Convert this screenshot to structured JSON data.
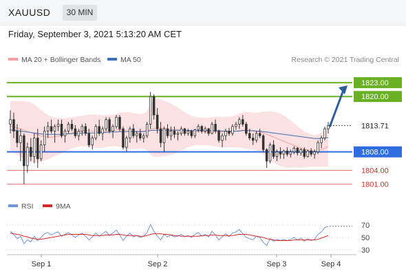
{
  "header": {
    "symbol": "XAUUSD",
    "timeframe": "30 MIN"
  },
  "subtitle": "Friday, September 3, 2021 5:13:20 AM CET",
  "legend": {
    "ma20": {
      "label": "MA 20 + Bollinger Bands",
      "color": "#f4a0a0"
    },
    "ma50": {
      "label": "MA 50",
      "color": "#3b6fb6"
    }
  },
  "credit": "Research © 2021 Trading Central",
  "rsi_legend": {
    "rsi": {
      "label": "RSI",
      "color": "#6f95d8"
    },
    "ma9": {
      "label": "9MA",
      "color": "#d62728"
    }
  },
  "colors": {
    "resistance": "#6ab023",
    "support": "#2f6ce0",
    "minor": "#e07070",
    "current": "#555555",
    "arrow": "#2d5d9e",
    "candle": "#333333",
    "band": "#fadcdc"
  },
  "chart_data": [
    {
      "type": "candlestick",
      "x_axis": {
        "tick_labels": [
          "Sep 1",
          "Sep 2",
          "Sep 3",
          "Sep 4"
        ]
      },
      "y_range": [
        1799,
        1826
      ],
      "current_price": {
        "value": 1813.71,
        "label": "1813.71"
      },
      "levels": [
        {
          "value": 1823.0,
          "label": "1823.00",
          "kind": "resistance"
        },
        {
          "value": 1820.0,
          "label": "1820.00",
          "kind": "resistance"
        },
        {
          "value": 1808.0,
          "label": "1808.00",
          "kind": "support"
        },
        {
          "value": 1804.0,
          "label": "1804.00",
          "kind": "minor"
        },
        {
          "value": 1801.0,
          "label": "1801.00",
          "kind": "minor"
        }
      ],
      "forecast_arrow": {
        "from": 1813.4,
        "to": 1823.0
      },
      "ohlc": [
        [
          1814.0,
          1817.0,
          1812.0,
          1815.0
        ],
        [
          1815.0,
          1816.5,
          1811.0,
          1812.5
        ],
        [
          1812.5,
          1814.0,
          1809.0,
          1810.0
        ],
        [
          1810.0,
          1813.0,
          1806.0,
          1811.5
        ],
        [
          1811.5,
          1812.0,
          1801.0,
          1805.0
        ],
        [
          1805.0,
          1810.0,
          1803.5,
          1809.0
        ],
        [
          1809.0,
          1811.0,
          1806.0,
          1807.0
        ],
        [
          1807.0,
          1812.0,
          1805.5,
          1811.0
        ],
        [
          1811.0,
          1813.0,
          1804.5,
          1806.5
        ],
        [
          1806.5,
          1810.5,
          1806.0,
          1809.5
        ],
        [
          1809.5,
          1813.5,
          1808.0,
          1812.5
        ],
        [
          1812.5,
          1814.5,
          1811.0,
          1813.5
        ],
        [
          1813.5,
          1815.0,
          1812.0,
          1812.5
        ],
        [
          1812.5,
          1814.0,
          1810.0,
          1813.5
        ],
        [
          1813.5,
          1815.0,
          1812.5,
          1814.0
        ],
        [
          1814.0,
          1815.0,
          1811.0,
          1811.5
        ],
        [
          1811.5,
          1813.0,
          1810.0,
          1812.5
        ],
        [
          1812.5,
          1814.5,
          1812.0,
          1814.0
        ],
        [
          1814.0,
          1815.0,
          1812.5,
          1813.0
        ],
        [
          1813.0,
          1813.8,
          1811.0,
          1811.5
        ],
        [
          1811.5,
          1813.0,
          1810.5,
          1812.5
        ],
        [
          1812.5,
          1814.0,
          1811.5,
          1813.5
        ],
        [
          1813.5,
          1814.2,
          1811.5,
          1812.0
        ],
        [
          1812.0,
          1813.0,
          1809.0,
          1809.5
        ],
        [
          1809.5,
          1811.5,
          1808.5,
          1811.0
        ],
        [
          1811.0,
          1814.0,
          1810.5,
          1813.5
        ],
        [
          1813.5,
          1815.0,
          1811.5,
          1812.0
        ],
        [
          1812.0,
          1813.5,
          1810.5,
          1813.0
        ],
        [
          1813.0,
          1815.5,
          1812.5,
          1815.0
        ],
        [
          1815.0,
          1815.5,
          1812.0,
          1812.5
        ],
        [
          1812.5,
          1814.0,
          1811.0,
          1813.5
        ],
        [
          1813.5,
          1816.0,
          1813.0,
          1815.5
        ],
        [
          1815.5,
          1816.0,
          1812.5,
          1813.0
        ],
        [
          1813.0,
          1813.5,
          1808.5,
          1809.0
        ],
        [
          1809.0,
          1811.5,
          1808.0,
          1811.0
        ],
        [
          1811.0,
          1813.5,
          1810.0,
          1813.0
        ],
        [
          1813.0,
          1814.0,
          1811.0,
          1811.5
        ],
        [
          1811.5,
          1812.5,
          1810.0,
          1812.0
        ],
        [
          1812.0,
          1813.0,
          1810.5,
          1811.0
        ],
        [
          1811.0,
          1812.0,
          1810.0,
          1811.5
        ],
        [
          1811.5,
          1814.5,
          1811.0,
          1814.0
        ],
        [
          1814.0,
          1821.0,
          1813.0,
          1820.0
        ],
        [
          1820.0,
          1820.5,
          1815.0,
          1816.0
        ],
        [
          1816.0,
          1817.5,
          1812.0,
          1813.0
        ],
        [
          1813.0,
          1814.5,
          1809.0,
          1810.0
        ],
        [
          1810.0,
          1813.5,
          1808.0,
          1813.0
        ],
        [
          1813.0,
          1814.0,
          1811.0,
          1811.5
        ],
        [
          1811.5,
          1813.5,
          1810.5,
          1812.5
        ],
        [
          1812.5,
          1813.5,
          1811.0,
          1811.8
        ],
        [
          1811.8,
          1812.5,
          1810.5,
          1812.0
        ],
        [
          1812.0,
          1813.5,
          1811.5,
          1813.0
        ],
        [
          1813.0,
          1813.2,
          1811.5,
          1812.0
        ],
        [
          1812.0,
          1813.0,
          1811.5,
          1812.5
        ],
        [
          1812.5,
          1812.8,
          1811.0,
          1811.5
        ],
        [
          1811.5,
          1813.0,
          1811.0,
          1812.8
        ],
        [
          1812.8,
          1814.0,
          1812.2,
          1813.5
        ],
        [
          1813.5,
          1813.8,
          1812.0,
          1812.5
        ],
        [
          1812.5,
          1813.5,
          1812.0,
          1813.0
        ],
        [
          1813.0,
          1813.2,
          1811.5,
          1812.0
        ],
        [
          1812.0,
          1814.5,
          1811.8,
          1814.0
        ],
        [
          1814.0,
          1815.0,
          1812.0,
          1812.5
        ],
        [
          1812.5,
          1812.8,
          1810.0,
          1810.5
        ],
        [
          1810.5,
          1812.0,
          1809.0,
          1811.5
        ],
        [
          1811.5,
          1813.0,
          1810.5,
          1812.5
        ],
        [
          1812.5,
          1813.2,
          1811.5,
          1812.0
        ],
        [
          1812.0,
          1814.0,
          1811.5,
          1813.5
        ],
        [
          1813.5,
          1814.5,
          1812.8,
          1814.0
        ],
        [
          1814.0,
          1815.5,
          1813.0,
          1815.0
        ],
        [
          1815.0,
          1816.0,
          1813.5,
          1814.0
        ],
        [
          1814.0,
          1814.5,
          1811.5,
          1812.0
        ],
        [
          1812.0,
          1813.0,
          1810.5,
          1811.0
        ],
        [
          1811.0,
          1812.0,
          1809.5,
          1810.5
        ],
        [
          1810.5,
          1812.5,
          1810.0,
          1812.0
        ],
        [
          1812.0,
          1813.0,
          1811.0,
          1811.5
        ],
        [
          1811.5,
          1811.8,
          1808.0,
          1808.5
        ],
        [
          1808.5,
          1808.8,
          1804.5,
          1806.0
        ],
        [
          1806.0,
          1810.0,
          1805.5,
          1809.5
        ],
        [
          1809.5,
          1810.5,
          1806.5,
          1807.0
        ],
        [
          1807.0,
          1808.5,
          1806.0,
          1808.0
        ],
        [
          1808.0,
          1809.0,
          1806.5,
          1807.5
        ],
        [
          1807.5,
          1808.5,
          1806.5,
          1808.2
        ],
        [
          1808.2,
          1809.0,
          1807.0,
          1807.5
        ],
        [
          1807.5,
          1808.5,
          1806.8,
          1808.0
        ],
        [
          1808.0,
          1809.2,
          1807.5,
          1808.8
        ],
        [
          1808.8,
          1809.0,
          1807.2,
          1807.8
        ],
        [
          1807.8,
          1808.8,
          1807.2,
          1808.5
        ],
        [
          1808.5,
          1809.0,
          1806.5,
          1807.0
        ],
        [
          1807.0,
          1808.5,
          1806.8,
          1808.2
        ],
        [
          1808.2,
          1808.8,
          1807.0,
          1807.5
        ],
        [
          1807.5,
          1808.5,
          1806.5,
          1808.0
        ],
        [
          1808.0,
          1810.5,
          1807.5,
          1810.0
        ],
        [
          1810.0,
          1811.5,
          1808.8,
          1811.0
        ],
        [
          1811.0,
          1813.5,
          1810.5,
          1813.0
        ],
        [
          1813.0,
          1814.5,
          1812.0,
          1813.71
        ]
      ],
      "ma20": [
        1813.6,
        1813.4,
        1813.2,
        1813.0,
        1812.7,
        1812.4,
        1812.2,
        1812.0,
        1811.7,
        1811.5,
        1811.3,
        1811.2,
        1811.2,
        1811.3,
        1811.4,
        1811.5,
        1811.7,
        1811.9,
        1812.1,
        1812.3,
        1812.4,
        1812.5,
        1812.6,
        1812.6,
        1812.5,
        1812.5,
        1812.4,
        1812.4,
        1812.5,
        1812.6,
        1812.6,
        1812.7,
        1812.8,
        1812.7,
        1812.6,
        1812.6,
        1812.5,
        1812.5,
        1812.5,
        1812.5,
        1812.6,
        1812.9,
        1813.1,
        1813.2,
        1813.2,
        1813.1,
        1813.0,
        1812.9,
        1812.8,
        1812.8,
        1812.7,
        1812.6,
        1812.6,
        1812.5,
        1812.5,
        1812.5,
        1812.4,
        1812.4,
        1812.4,
        1812.4,
        1812.4,
        1812.3,
        1812.3,
        1812.3,
        1812.3,
        1812.4,
        1812.5,
        1812.6,
        1812.7,
        1812.7,
        1812.6,
        1812.5,
        1812.4,
        1812.3,
        1812.1,
        1811.8,
        1811.5,
        1811.2,
        1810.9,
        1810.6,
        1810.3,
        1810.0,
        1809.7,
        1809.4,
        1809.1,
        1808.8,
        1808.6,
        1808.4,
        1808.3,
        1808.2,
        1808.3,
        1808.5,
        1808.8,
        1809.2
      ],
      "ma50": [
        1812.8,
        1812.7,
        1812.6,
        1812.5,
        1812.4,
        1812.3,
        1812.2,
        1812.1,
        1812.0,
        1811.9,
        1811.8,
        1811.8,
        1811.8,
        1811.8,
        1811.8,
        1811.8,
        1811.9,
        1811.9,
        1812.0,
        1812.0,
        1812.0,
        1812.1,
        1812.1,
        1812.1,
        1812.1,
        1812.1,
        1812.2,
        1812.2,
        1812.2,
        1812.3,
        1812.3,
        1812.3,
        1812.4,
        1812.4,
        1812.4,
        1812.4,
        1812.4,
        1812.4,
        1812.4,
        1812.4,
        1812.5,
        1812.6,
        1812.7,
        1812.7,
        1812.7,
        1812.7,
        1812.7,
        1812.7,
        1812.7,
        1812.7,
        1812.7,
        1812.7,
        1812.7,
        1812.6,
        1812.6,
        1812.6,
        1812.6,
        1812.6,
        1812.6,
        1812.6,
        1812.6,
        1812.6,
        1812.5,
        1812.5,
        1812.5,
        1812.5,
        1812.5,
        1812.5,
        1812.6,
        1812.6,
        1812.6,
        1812.6,
        1812.5,
        1812.5,
        1812.4,
        1812.3,
        1812.2,
        1812.1,
        1812.0,
        1811.9,
        1811.8,
        1811.7,
        1811.6,
        1811.5,
        1811.4,
        1811.3,
        1811.2,
        1811.1,
        1811.0,
        1810.9,
        1810.9,
        1810.9,
        1811.0,
        1811.1
      ],
      "bb_width": [
        5.5,
        5.6,
        5.8,
        6.0,
        6.3,
        6.5,
        6.5,
        6.3,
        6.0,
        5.6,
        5.2,
        4.8,
        4.5,
        4.2,
        4.0,
        3.8,
        3.6,
        3.5,
        3.4,
        3.3,
        3.3,
        3.3,
        3.4,
        3.5,
        3.6,
        3.6,
        3.6,
        3.5,
        3.5,
        3.4,
        3.4,
        3.5,
        3.7,
        3.9,
        4.0,
        4.0,
        3.9,
        3.8,
        3.7,
        3.8,
        4.2,
        5.5,
        6.2,
        6.3,
        6.2,
        6.0,
        5.8,
        5.5,
        5.2,
        4.8,
        4.4,
        4.0,
        3.6,
        3.3,
        3.1,
        3.0,
        3.0,
        3.0,
        3.0,
        3.1,
        3.2,
        3.3,
        3.3,
        3.3,
        3.3,
        3.4,
        3.5,
        3.7,
        3.9,
        4.0,
        4.0,
        4.0,
        4.1,
        4.3,
        4.6,
        5.0,
        5.3,
        5.5,
        5.6,
        5.7,
        5.6,
        5.4,
        5.1,
        4.8,
        4.5,
        4.2,
        3.9,
        3.7,
        3.5,
        3.4,
        3.5,
        3.7,
        4.0,
        4.3
      ]
    },
    {
      "type": "line",
      "name": "RSI",
      "y_range": [
        20,
        80
      ],
      "y_tick_labels": [
        "70",
        "50",
        "30"
      ],
      "y_tick_values": [
        70,
        50,
        30
      ],
      "series": [
        {
          "name": "RSI",
          "values": [
            60,
            55,
            48,
            52,
            40,
            46,
            43,
            52,
            45,
            50,
            56,
            58,
            54,
            57,
            59,
            52,
            55,
            58,
            54,
            50,
            54,
            57,
            52,
            46,
            51,
            57,
            52,
            56,
            60,
            53,
            57,
            62,
            54,
            45,
            52,
            57,
            51,
            53,
            50,
            52,
            58,
            71,
            60,
            52,
            46,
            55,
            51,
            54,
            51,
            52,
            55,
            51,
            53,
            50,
            55,
            58,
            52,
            55,
            51,
            60,
            54,
            46,
            51,
            56,
            51,
            57,
            59,
            63,
            56,
            50,
            48,
            46,
            52,
            50,
            42,
            37,
            48,
            44,
            47,
            45,
            47,
            45,
            47,
            50,
            46,
            49,
            44,
            48,
            45,
            47,
            55,
            59,
            66,
            68
          ]
        },
        {
          "name": "9MA",
          "values": [
            57,
            56,
            55,
            54,
            52,
            51,
            49,
            48,
            47,
            47,
            48,
            49,
            50,
            51,
            52,
            53,
            54,
            55,
            55,
            55,
            55,
            55,
            55,
            54,
            53,
            53,
            53,
            53,
            54,
            54,
            54,
            55,
            55,
            54,
            53,
            53,
            53,
            53,
            52,
            52,
            53,
            55,
            56,
            56,
            56,
            55,
            55,
            54,
            53,
            53,
            52,
            52,
            52,
            52,
            52,
            52,
            53,
            53,
            53,
            54,
            54,
            53,
            53,
            53,
            53,
            53,
            54,
            55,
            55,
            55,
            54,
            53,
            52,
            51,
            50,
            48,
            47,
            46,
            45,
            45,
            45,
            45,
            45,
            46,
            46,
            46,
            46,
            46,
            46,
            46,
            47,
            49,
            51,
            53
          ]
        }
      ]
    }
  ]
}
